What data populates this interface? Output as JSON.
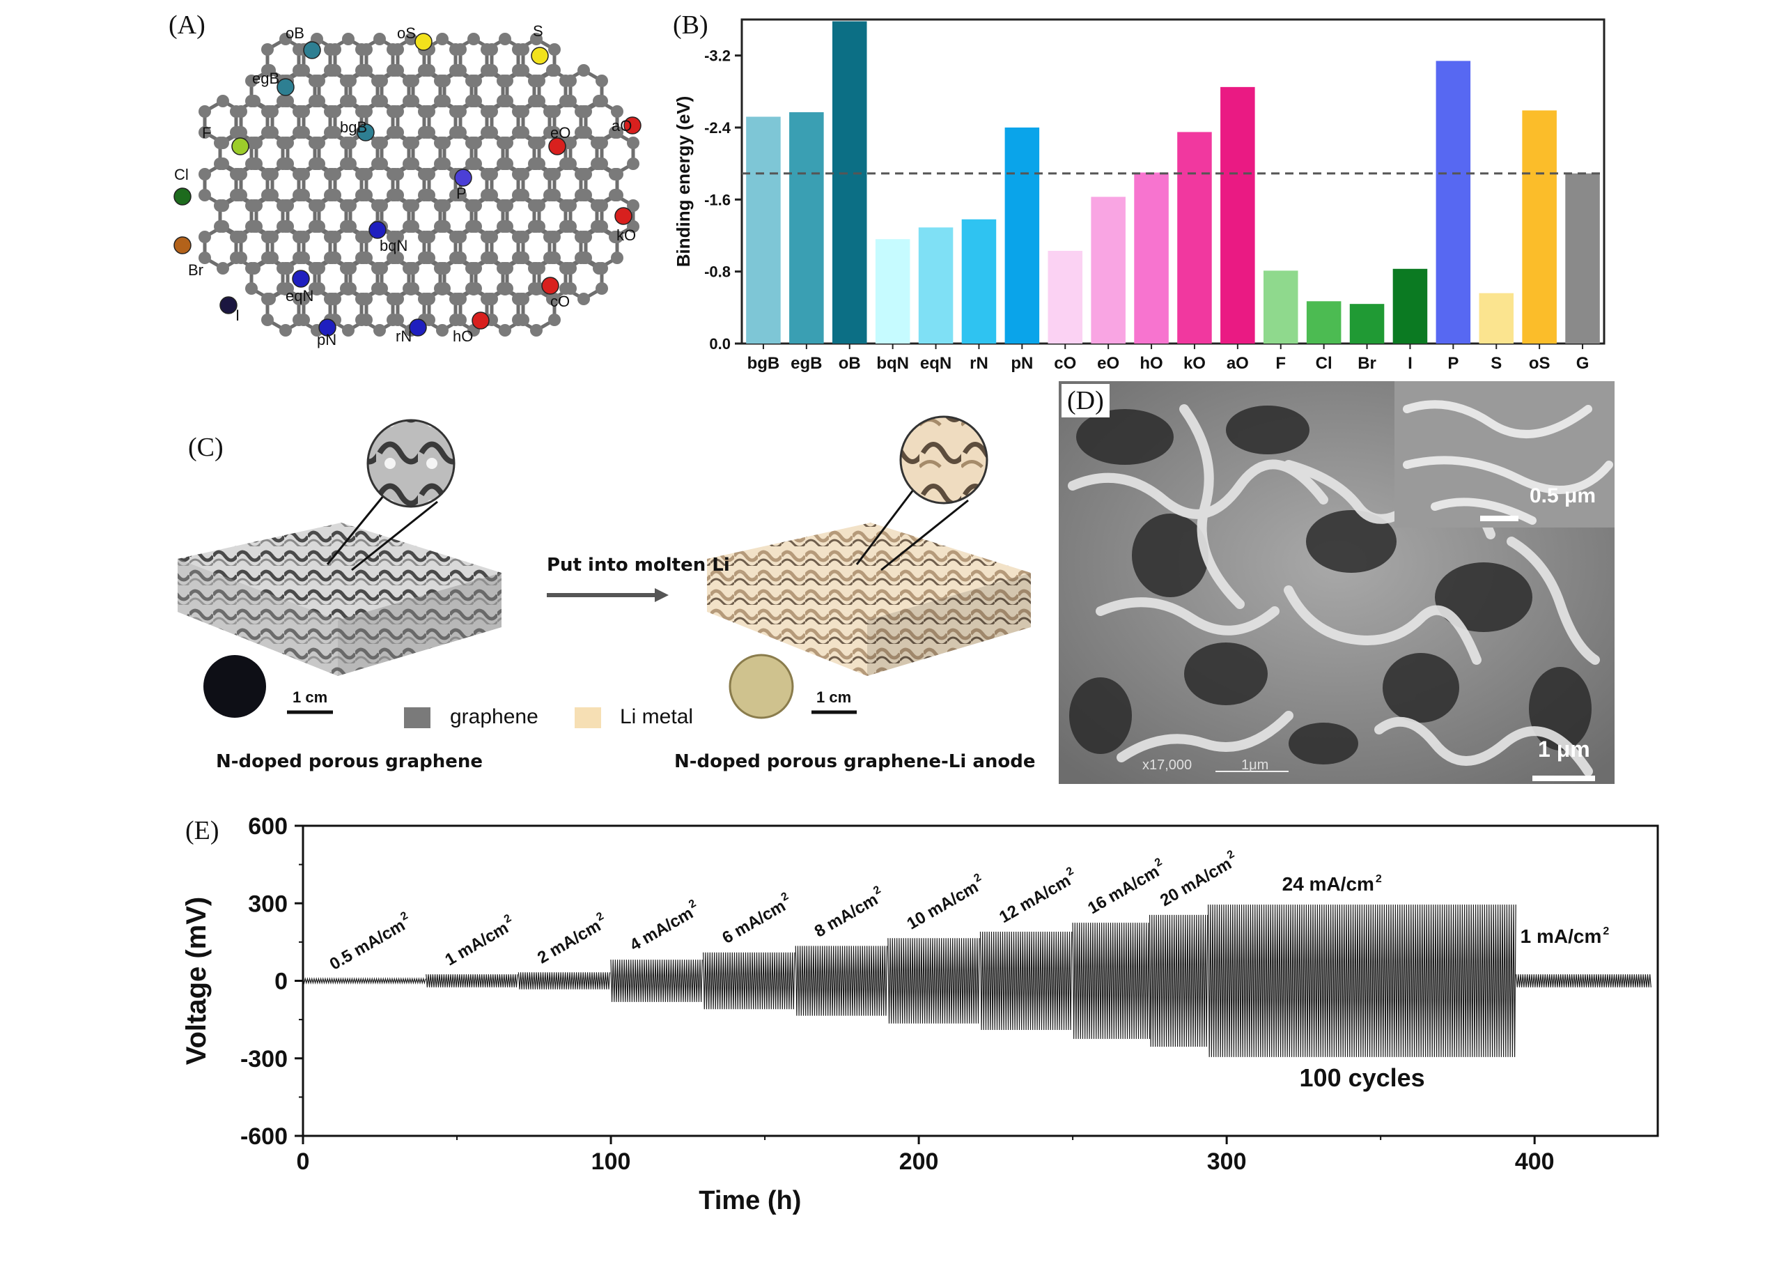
{
  "panels": {
    "a": {
      "label": "(A)",
      "sites": [
        {
          "id": "oB",
          "label": "oB",
          "color": "#2e7f92"
        },
        {
          "id": "egB",
          "label": "egB",
          "color": "#2e7f92"
        },
        {
          "id": "bgB",
          "label": "bgB",
          "color": "#2e7f92"
        },
        {
          "id": "oS",
          "label": "oS",
          "color": "#f2e21c"
        },
        {
          "id": "S",
          "label": "S",
          "color": "#f2e21c"
        },
        {
          "id": "aO",
          "label": "aO",
          "color": "#d8201e"
        },
        {
          "id": "eO",
          "label": "eO",
          "color": "#d8201e"
        },
        {
          "id": "kO",
          "label": "kO",
          "color": "#d8201e"
        },
        {
          "id": "cO",
          "label": "cO",
          "color": "#d8201e"
        },
        {
          "id": "hO",
          "label": "hO",
          "color": "#d8201e"
        },
        {
          "id": "P",
          "label": "P",
          "color": "#4b3fd6"
        },
        {
          "id": "F",
          "label": "F",
          "color": "#9ccd2a"
        },
        {
          "id": "Cl",
          "label": "Cl",
          "color": "#1d6b1d"
        },
        {
          "id": "Br",
          "label": "Br",
          "color": "#b3621a"
        },
        {
          "id": "I",
          "label": "I",
          "color": "#1b1640"
        },
        {
          "id": "bqN",
          "label": "bqN",
          "color": "#1f1fbf"
        },
        {
          "id": "eqN",
          "label": "eqN",
          "color": "#1f1fbf"
        },
        {
          "id": "pN",
          "label": "pN",
          "color": "#1f1fbf"
        },
        {
          "id": "rN",
          "label": "rN",
          "color": "#1f1fbf"
        }
      ]
    },
    "b": {
      "label": "(B)"
    },
    "c": {
      "label": "(C)",
      "arrow_label": "Put into molten Li",
      "left_caption": "N-doped porous graphene",
      "right_caption": "N-doped porous graphene-Li anode",
      "scale_left": "1 cm",
      "scale_right": "1 cm",
      "legend": [
        {
          "label": "graphene",
          "color": "#7a7a7a"
        },
        {
          "label": "Li metal",
          "color": "#f6dfb4"
        }
      ]
    },
    "d": {
      "label": "(D)",
      "inset_scale": "0.5 μm",
      "main_scale": "1 μm",
      "sem_magnification": "x17,000",
      "sem_scale": "1μm"
    },
    "e": {
      "label": "(E)"
    }
  },
  "chart_data": [
    {
      "type": "bar",
      "panel": "B",
      "ylabel": "Binding energy (eV)",
      "xlabel": "",
      "ylim": [
        0,
        -3.6
      ],
      "y_ticks": [
        0.0,
        -0.8,
        -1.6,
        -2.4,
        -3.2
      ],
      "y_tick_labels": [
        "0.0",
        "-0.8",
        "-1.6",
        "-2.4",
        "-3.2"
      ],
      "categories": [
        "bgB",
        "egB",
        "oB",
        "bqN",
        "eqN",
        "rN",
        "pN",
        "cO",
        "eO",
        "hO",
        "kO",
        "aO",
        "F",
        "Cl",
        "Br",
        "I",
        "P",
        "S",
        "oS",
        "G"
      ],
      "values": [
        -2.52,
        -2.57,
        -3.58,
        -1.16,
        -1.29,
        -1.38,
        -2.4,
        -1.03,
        -1.63,
        -1.9,
        -2.35,
        -2.85,
        -0.81,
        -0.47,
        -0.44,
        -0.83,
        -3.14,
        -0.56,
        -2.59,
        -1.89
      ],
      "colors": [
        "#7ec6d6",
        "#3a9fb3",
        "#0c6f85",
        "#c6fbff",
        "#7fe0f5",
        "#2fc3f1",
        "#0aa4ea",
        "#fbd2f3",
        "#f9a5e3",
        "#f774cf",
        "#f1389f",
        "#ea1a83",
        "#8fd98d",
        "#4cbb52",
        "#209a34",
        "#0b7a22",
        "#5768f2",
        "#fbe48f",
        "#fbbd2a",
        "#8a8a8a"
      ],
      "reference_line": -1.89,
      "grid": false
    },
    {
      "type": "line",
      "panel": "E",
      "xlabel": "Time (h)",
      "ylabel": "Voltage (mV)",
      "xlim": [
        0,
        440
      ],
      "ylim": [
        -600,
        600
      ],
      "x_ticks": [
        0,
        100,
        200,
        300,
        400
      ],
      "y_ticks": [
        -600,
        -300,
        0,
        300,
        600
      ],
      "grid": false,
      "segments": [
        {
          "label": "0.5 mA/cm",
          "start": 0,
          "end": 40,
          "amplitude": 8
        },
        {
          "label": "1 mA/cm",
          "start": 40,
          "end": 70,
          "amplitude": 25
        },
        {
          "label": "2 mA/cm",
          "start": 70,
          "end": 100,
          "amplitude": 33
        },
        {
          "label": "4 mA/cm",
          "start": 100,
          "end": 130,
          "amplitude": 82
        },
        {
          "label": "6 mA/cm",
          "start": 130,
          "end": 160,
          "amplitude": 110
        },
        {
          "label": "8 mA/cm",
          "start": 160,
          "end": 190,
          "amplitude": 135
        },
        {
          "label": "10 mA/cm",
          "start": 190,
          "end": 220,
          "amplitude": 165
        },
        {
          "label": "12 mA/cm",
          "start": 220,
          "end": 250,
          "amplitude": 190
        },
        {
          "label": "16 mA/cm",
          "start": 250,
          "end": 275,
          "amplitude": 225
        },
        {
          "label": "20 mA/cm",
          "start": 275,
          "end": 294,
          "amplitude": 255
        },
        {
          "label": "24 mA/cm",
          "start": 294,
          "end": 394,
          "amplitude": 295
        },
        {
          "label": "1 mA/cm",
          "start": 394,
          "end": 438,
          "amplitude": 25
        }
      ],
      "superscript": "2",
      "annotation": "100 cycles"
    }
  ]
}
